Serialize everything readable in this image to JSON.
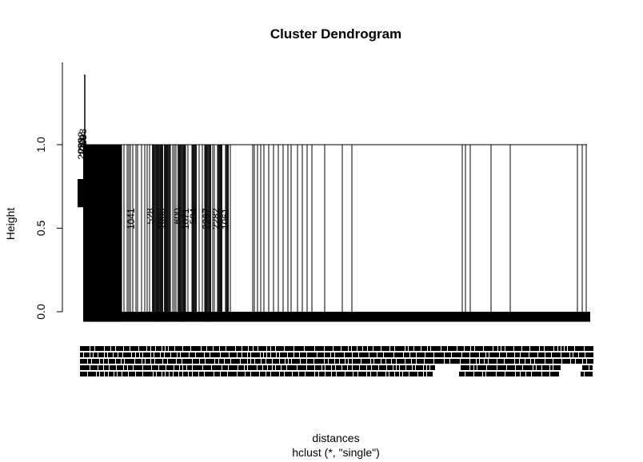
{
  "chart_data": {
    "type": "dendrogram",
    "title": "Cluster Dendrogram",
    "xlabel": "distances",
    "sub": "hclust (*, \"single\")",
    "ylabel": "Height",
    "ylim": [
      -0.08,
      1.45
    ],
    "yticks": [
      0.0,
      0.5,
      1.0
    ],
    "ytick_labels": [
      "0.0",
      "0.5",
      "1.0"
    ],
    "root_height": 1.42,
    "merge_height": 1.0,
    "grid": false,
    "legend": "none",
    "top_cluster_labels": [
      "2033",
      "2059",
      "2092",
      "2098"
    ],
    "mid_labels": [
      "1041",
      "528",
      "1003",
      "600",
      "1071",
      "504",
      "2267",
      "2282",
      "1061"
    ],
    "left_stack_heights": [
      0.78,
      0.76,
      0.74,
      0.72,
      0.7,
      0.68,
      0.66,
      0.64
    ]
  }
}
